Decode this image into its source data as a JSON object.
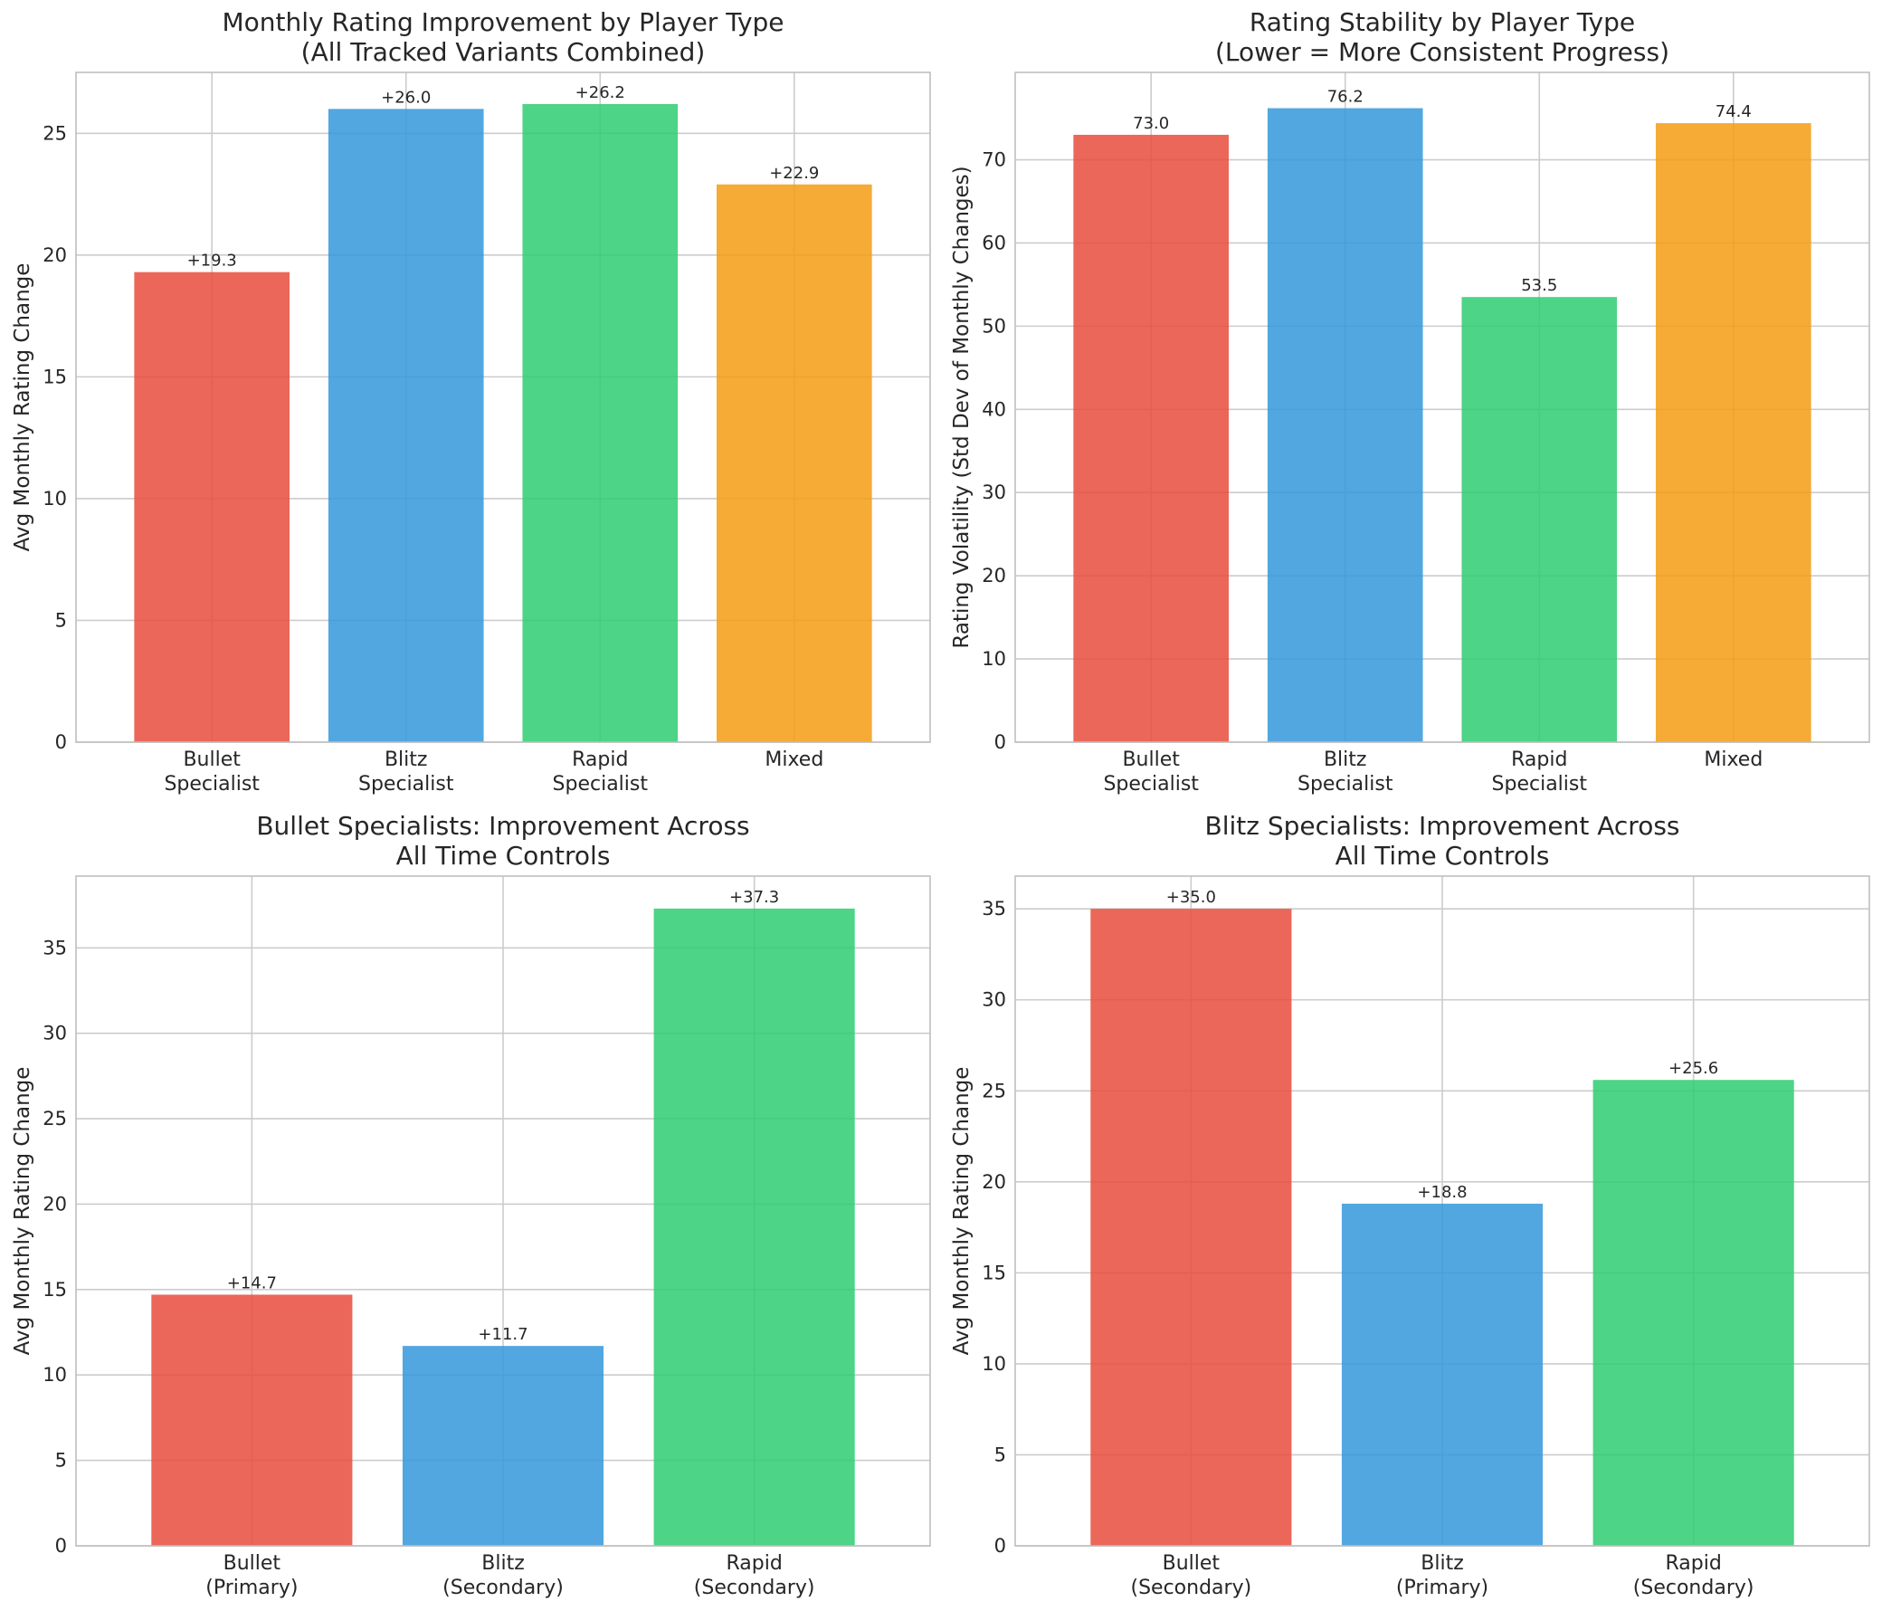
{
  "colors": {
    "bullet": "#e74c3c",
    "blitz": "#3498db",
    "rapid": "#2ecc71",
    "mixed": "#f39c12",
    "grid": "#cccccc",
    "frame": "#bfbfbf"
  },
  "chart_data": [
    {
      "type": "bar",
      "title": [
        "Monthly Rating Improvement by Player Type",
        "(All Tracked Variants Combined)"
      ],
      "xlabel": "",
      "ylabel": "Avg Monthly Rating Change",
      "categories": [
        [
          "Bullet",
          "Specialist"
        ],
        [
          "Blitz",
          "Specialist"
        ],
        [
          "Rapid",
          "Specialist"
        ],
        [
          "Mixed"
        ]
      ],
      "values": [
        19.3,
        26.0,
        26.2,
        22.9
      ],
      "data_labels": [
        "+19.3",
        "+26.0",
        "+26.2",
        "+22.9"
      ],
      "bar_colors": [
        "bullet",
        "blitz",
        "rapid",
        "mixed"
      ],
      "ylim": [
        0,
        27.5
      ],
      "yticks": [
        0,
        5,
        10,
        15,
        20,
        25
      ],
      "grid": true
    },
    {
      "type": "bar",
      "title": [
        "Rating Stability by Player Type",
        "(Lower = More Consistent Progress)"
      ],
      "xlabel": "",
      "ylabel": "Rating Volatility (Std Dev of Monthly Changes)",
      "categories": [
        [
          "Bullet",
          "Specialist"
        ],
        [
          "Blitz",
          "Specialist"
        ],
        [
          "Rapid",
          "Specialist"
        ],
        [
          "Mixed"
        ]
      ],
      "values": [
        73.0,
        76.2,
        53.5,
        74.4
      ],
      "data_labels": [
        "73.0",
        "76.2",
        "53.5",
        "74.4"
      ],
      "bar_colors": [
        "bullet",
        "blitz",
        "rapid",
        "mixed"
      ],
      "ylim": [
        0,
        80.5
      ],
      "yticks": [
        0,
        10,
        20,
        30,
        40,
        50,
        60,
        70
      ],
      "grid": true
    },
    {
      "type": "bar",
      "title": [
        "Bullet Specialists: Improvement Across",
        "All Time Controls"
      ],
      "xlabel": "",
      "ylabel": "Avg Monthly Rating Change",
      "categories": [
        [
          "Bullet",
          "(Primary)"
        ],
        [
          "Blitz",
          "(Secondary)"
        ],
        [
          "Rapid",
          "(Secondary)"
        ]
      ],
      "values": [
        14.7,
        11.7,
        37.3
      ],
      "data_labels": [
        "+14.7",
        "+11.7",
        "+37.3"
      ],
      "bar_colors": [
        "bullet",
        "blitz",
        "rapid"
      ],
      "ylim": [
        0,
        39.2
      ],
      "yticks": [
        0,
        5,
        10,
        15,
        20,
        25,
        30,
        35
      ],
      "grid": true
    },
    {
      "type": "bar",
      "title": [
        "Blitz Specialists: Improvement Across",
        "All Time Controls"
      ],
      "xlabel": "",
      "ylabel": "Avg Monthly Rating Change",
      "categories": [
        [
          "Bullet",
          "(Secondary)"
        ],
        [
          "Blitz",
          "(Primary)"
        ],
        [
          "Rapid",
          "(Secondary)"
        ]
      ],
      "values": [
        35.0,
        18.8,
        25.6
      ],
      "data_labels": [
        "+35.0",
        "+18.8",
        "+25.6"
      ],
      "bar_colors": [
        "bullet",
        "blitz",
        "rapid"
      ],
      "ylim": [
        0,
        36.8
      ],
      "yticks": [
        0,
        5,
        10,
        15,
        20,
        25,
        30,
        35
      ],
      "grid": true
    }
  ]
}
